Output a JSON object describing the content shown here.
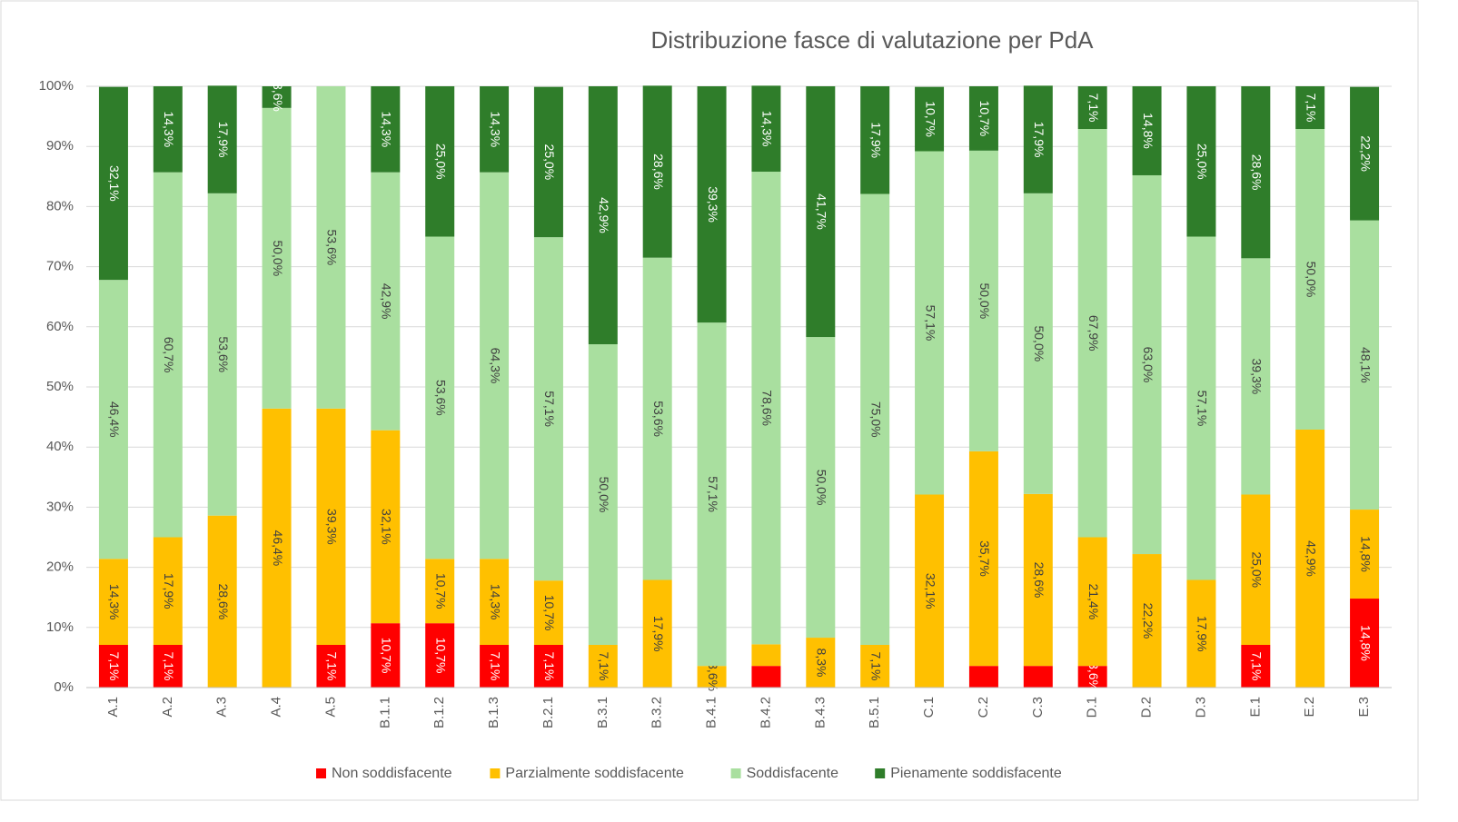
{
  "chart_data": {
    "type": "stacked_bar",
    "title": "Distribuzione fasce di valutazione per PdA",
    "categories": [
      "A.1",
      "A.2",
      "A.3",
      "A.4",
      "A.5",
      "B.1.1",
      "B.1.2",
      "B.1.3",
      "B.2.1",
      "B.3.1",
      "B.3.2",
      "B.4.1",
      "B.4.2",
      "B.4.3",
      "B.5.1",
      "C.1",
      "C.2",
      "C.3",
      "D.1",
      "D.2",
      "D.3",
      "E.1",
      "E.2",
      "E.3"
    ],
    "series": [
      {
        "name": "Non soddisfacente",
        "color": "#ff0000",
        "label_color": "#ffffff",
        "values": [
          7.1,
          7.1,
          0,
          0,
          7.1,
          10.7,
          10.7,
          7.1,
          7.1,
          0,
          0,
          0,
          3.6,
          0,
          0,
          0,
          3.6,
          3.6,
          3.6,
          0,
          0,
          7.1,
          0,
          14.8
        ],
        "value_labels": [
          "7,1%",
          "7,1%",
          null,
          null,
          "7,1%",
          "10,7%",
          "10,7%",
          "7,1%",
          "7,1%",
          null,
          null,
          null,
          null,
          null,
          null,
          null,
          null,
          null,
          "3,6%",
          null,
          null,
          "7,1%",
          null,
          "14,8%"
        ]
      },
      {
        "name": "Parzialmente soddisfacente",
        "color": "#ffc000",
        "label_color": "#404040",
        "values": [
          14.3,
          17.9,
          28.6,
          46.4,
          39.3,
          32.1,
          10.7,
          14.3,
          10.7,
          7.1,
          17.9,
          3.6,
          3.6,
          8.3,
          7.1,
          32.1,
          35.7,
          28.6,
          21.4,
          22.2,
          17.9,
          25.0,
          42.9,
          14.8
        ],
        "value_labels": [
          "14,3%",
          "17,9%",
          "28,6%",
          "46,4%",
          "39,3%",
          "32,1%",
          "10,7%",
          "14,3%",
          "10,7%",
          "7,1%",
          "17,9%",
          "3,6%",
          null,
          "8,3%",
          "7,1%",
          "32,1%",
          "35,7%",
          "28,6%",
          "21,4%",
          "22,2%",
          "17,9%",
          "25,0%",
          "42,9%",
          "14,8%"
        ]
      },
      {
        "name": "Soddisfacente",
        "color": "#a9df9f",
        "label_color": "#404040",
        "values": [
          46.4,
          60.7,
          53.6,
          50.0,
          53.6,
          42.9,
          53.6,
          64.3,
          57.1,
          50.0,
          53.6,
          57.1,
          78.6,
          50.0,
          75.0,
          57.1,
          50.0,
          50.0,
          67.9,
          63.0,
          57.1,
          39.3,
          50.0,
          48.1
        ],
        "value_labels": [
          "46,4%",
          "60,7%",
          "53,6%",
          "50,0%",
          "53,6%",
          "42,9%",
          "53,6%",
          "64,3%",
          "57,1%",
          "50,0%",
          "53,6%",
          "57,1%",
          "78,6%",
          "50,0%",
          "75,0%",
          "57,1%",
          "50,0%",
          "50,0%",
          "67,9%",
          "63,0%",
          "57,1%",
          "39,3%",
          "50,0%",
          "48,1%"
        ]
      },
      {
        "name": "Pienamente soddisfacente",
        "color": "#2f7d2a",
        "label_color": "#ffffff",
        "values": [
          32.1,
          14.3,
          17.9,
          3.6,
          0,
          14.3,
          25.0,
          14.3,
          25.0,
          42.9,
          28.6,
          39.3,
          14.3,
          41.7,
          17.9,
          10.7,
          10.7,
          17.9,
          7.1,
          14.8,
          25.0,
          28.6,
          7.1,
          22.2
        ],
        "value_labels": [
          "32,1%",
          "14,3%",
          "17,9%",
          "3,6%",
          null,
          "14,3%",
          "25,0%",
          "14,3%",
          "25,0%",
          "42,9%",
          "28,6%",
          "39,3%",
          "14,3%",
          "41,7%",
          "17,9%",
          "10,7%",
          "10,7%",
          "17,9%",
          "7,1%",
          "14,8%",
          "25,0%",
          "28,6%",
          "7,1%",
          "22,2%"
        ]
      }
    ],
    "ylim": [
      0,
      100
    ],
    "yticks": [
      {
        "value": 0,
        "label": "0%"
      },
      {
        "value": 10,
        "label": "10%"
      },
      {
        "value": 20,
        "label": "20%"
      },
      {
        "value": 30,
        "label": "30%"
      },
      {
        "value": 40,
        "label": "40%"
      },
      {
        "value": 50,
        "label": "50%"
      },
      {
        "value": 60,
        "label": "60%"
      },
      {
        "value": 70,
        "label": "70%"
      },
      {
        "value": 80,
        "label": "80%"
      },
      {
        "value": 90,
        "label": "90%"
      },
      {
        "value": 100,
        "label": "100%"
      }
    ],
    "grid": true,
    "legend": "bottom"
  }
}
